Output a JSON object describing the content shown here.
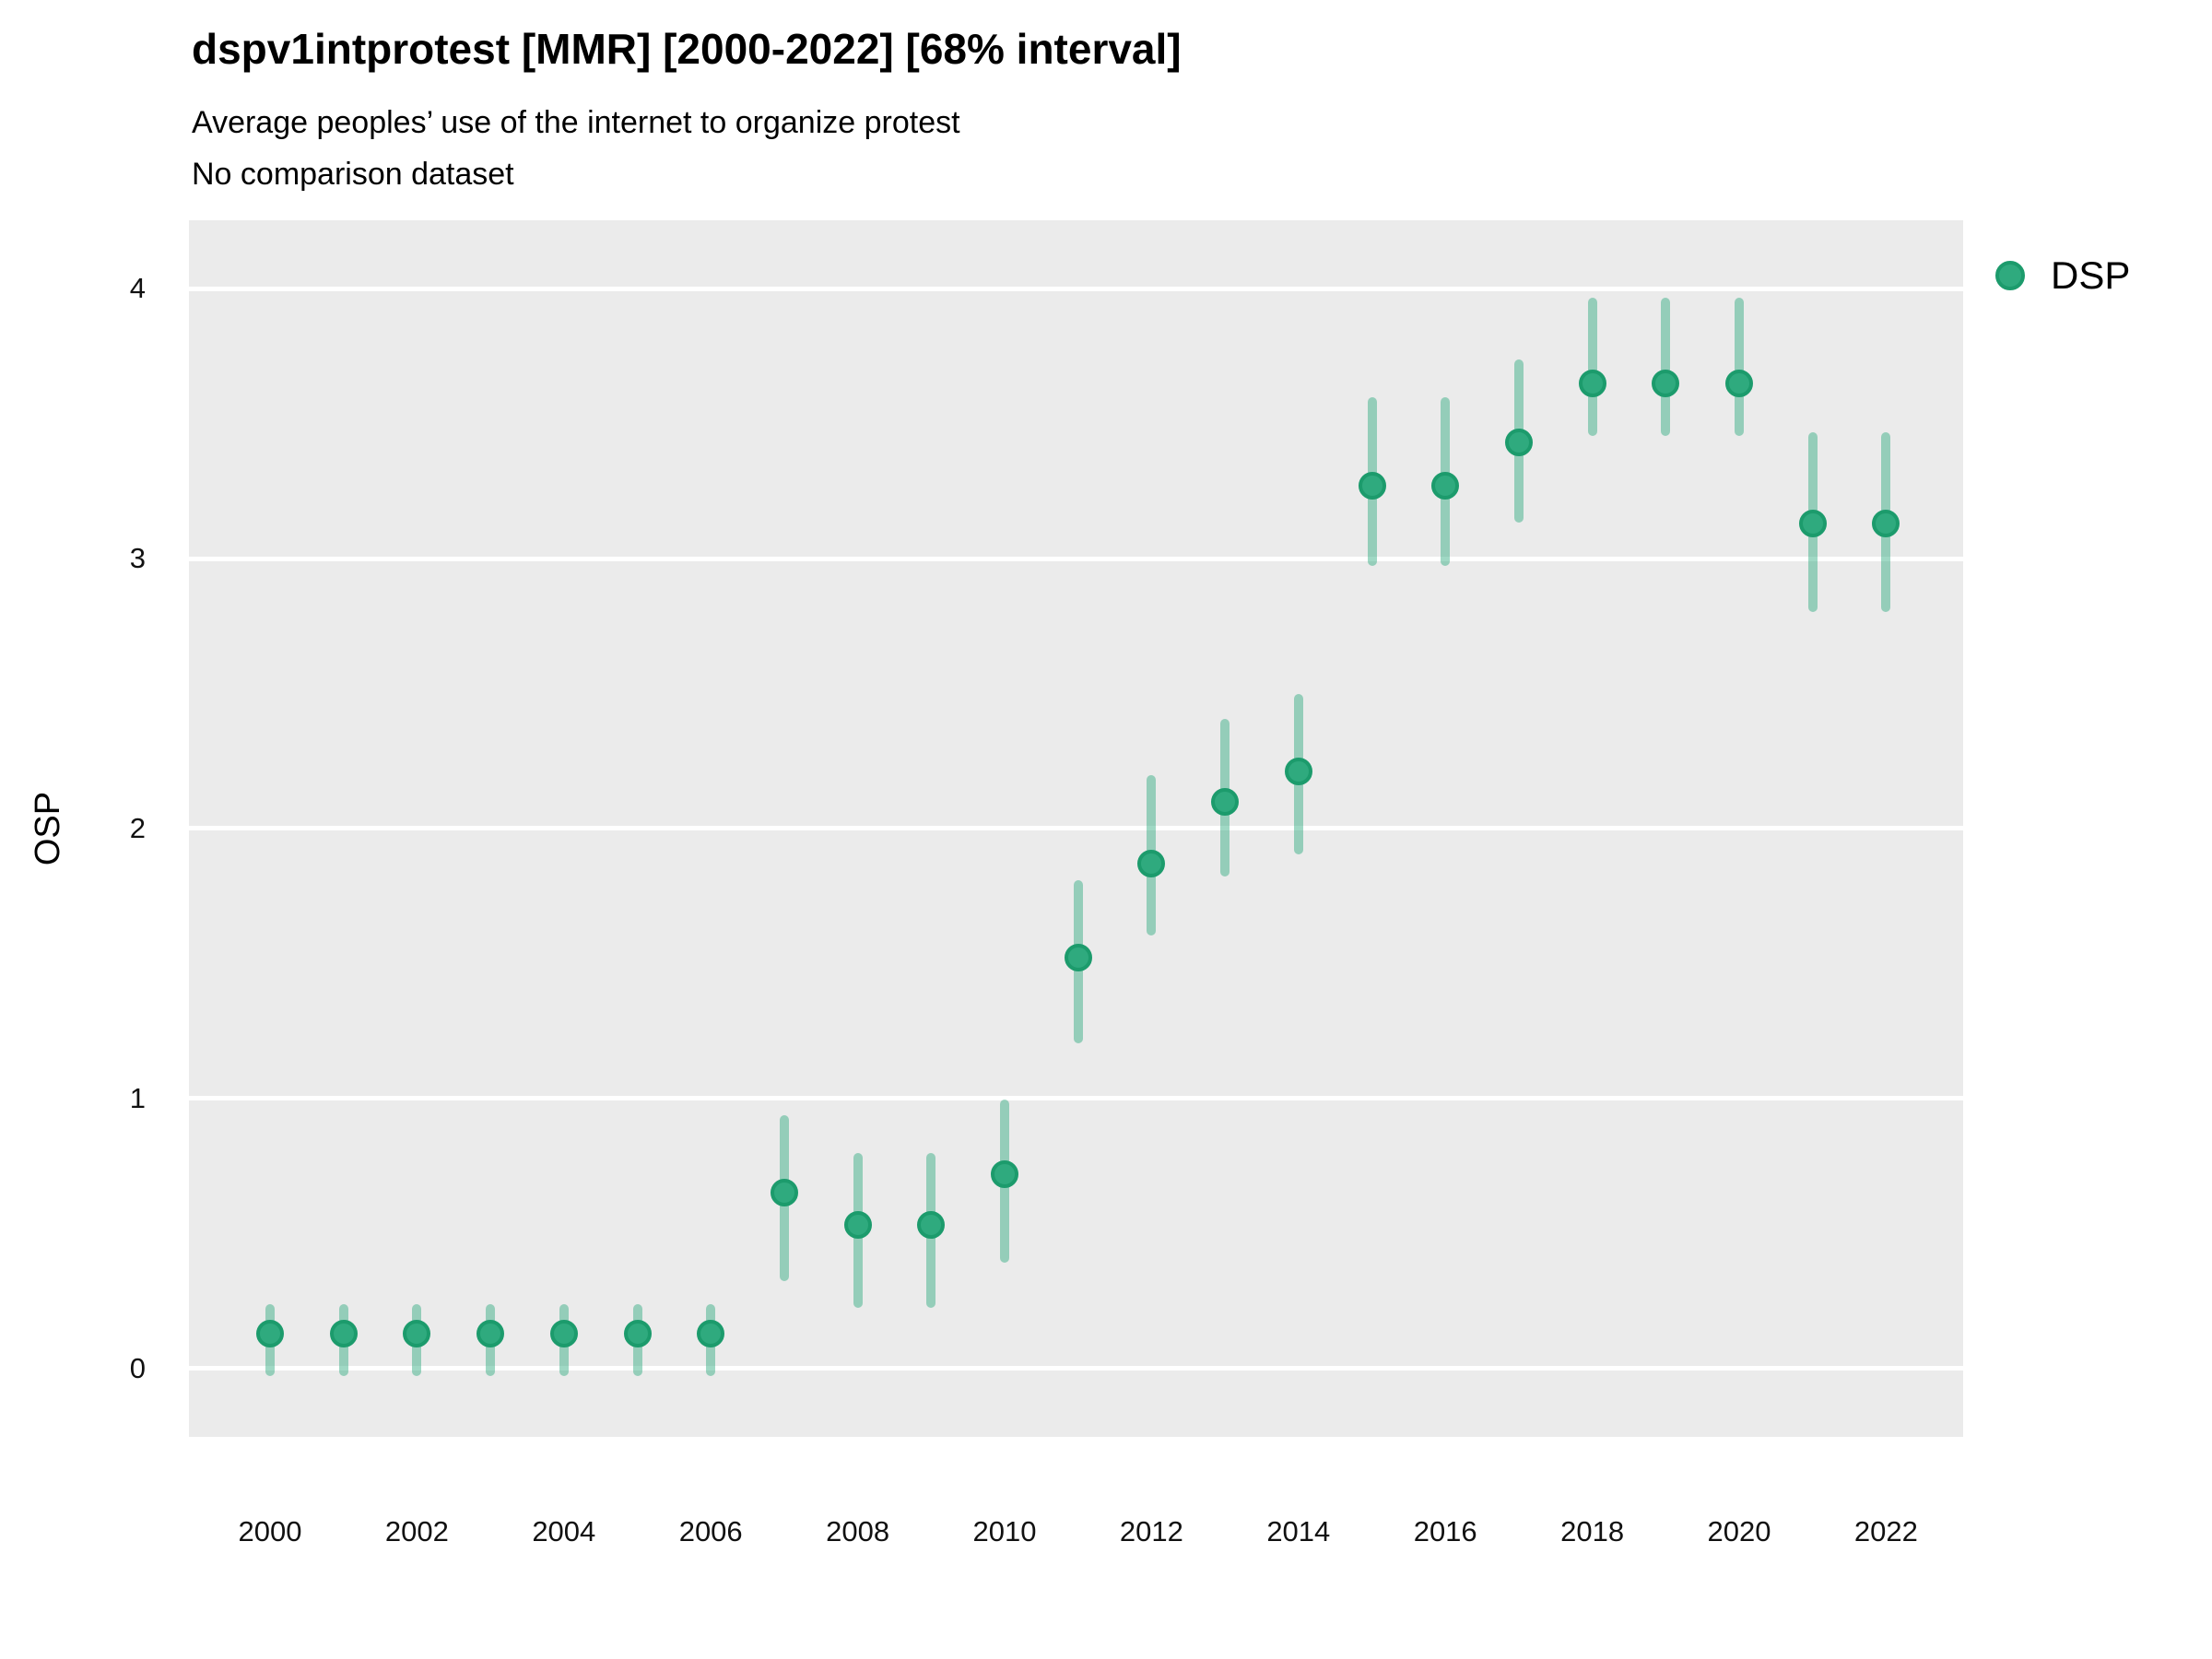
{
  "header": {
    "title": "dspv1intprotest [MMR] [2000-2022] [68% interval]",
    "subtitle": "Average peoples’ use of the internet to organize protest",
    "note": "No comparison dataset"
  },
  "legend": {
    "position": "right",
    "items": [
      {
        "label": "DSP",
        "color": "#2FAA7E"
      }
    ]
  },
  "colors": {
    "panel_background": "#EBEBEB",
    "gridline": "#FFFFFF",
    "point_fill": "#2FAA7E",
    "point_ring": "#1C9B6C",
    "interval_bar": "rgba(42,168,124,0.45)",
    "text": "#000000"
  },
  "chart_data": {
    "type": "pointrange",
    "title": "dspv1intprotest [MMR] [2000-2022] [68% interval]",
    "subtitle": "Average peoples’ use of the internet to organize protest",
    "note": "No comparison dataset",
    "xlabel": "",
    "ylabel": "OSP",
    "interval": "68%",
    "ylim": [
      -0.25,
      4.25
    ],
    "xlim": [
      1998.9,
      2023.1
    ],
    "yticks": [
      0,
      1,
      2,
      3,
      4
    ],
    "xticks": [
      2000,
      2002,
      2004,
      2006,
      2008,
      2010,
      2012,
      2014,
      2016,
      2018,
      2020,
      2022
    ],
    "grid": "horizontal-major-only",
    "legend_position": "right",
    "series": [
      {
        "name": "DSP",
        "color": "#2FAA7E",
        "interval_color": "rgba(42,168,124,0.45)",
        "points": [
          {
            "year": 2000,
            "value": 0.13,
            "lo": -0.01,
            "hi": 0.22
          },
          {
            "year": 2001,
            "value": 0.13,
            "lo": -0.01,
            "hi": 0.22
          },
          {
            "year": 2002,
            "value": 0.13,
            "lo": -0.01,
            "hi": 0.22
          },
          {
            "year": 2003,
            "value": 0.13,
            "lo": -0.01,
            "hi": 0.22
          },
          {
            "year": 2004,
            "value": 0.13,
            "lo": -0.01,
            "hi": 0.22
          },
          {
            "year": 2005,
            "value": 0.13,
            "lo": -0.01,
            "hi": 0.22
          },
          {
            "year": 2006,
            "value": 0.13,
            "lo": -0.01,
            "hi": 0.22
          },
          {
            "year": 2007,
            "value": 0.65,
            "lo": 0.34,
            "hi": 0.92
          },
          {
            "year": 2008,
            "value": 0.53,
            "lo": 0.24,
            "hi": 0.78
          },
          {
            "year": 2009,
            "value": 0.53,
            "lo": 0.24,
            "hi": 0.78
          },
          {
            "year": 2010,
            "value": 0.72,
            "lo": 0.41,
            "hi": 0.98
          },
          {
            "year": 2011,
            "value": 1.52,
            "lo": 1.22,
            "hi": 1.79
          },
          {
            "year": 2012,
            "value": 1.87,
            "lo": 1.62,
            "hi": 2.18
          },
          {
            "year": 2013,
            "value": 2.1,
            "lo": 1.84,
            "hi": 2.39
          },
          {
            "year": 2014,
            "value": 2.21,
            "lo": 1.92,
            "hi": 2.48
          },
          {
            "year": 2015,
            "value": 3.27,
            "lo": 2.99,
            "hi": 3.58
          },
          {
            "year": 2016,
            "value": 3.27,
            "lo": 2.99,
            "hi": 3.58
          },
          {
            "year": 2017,
            "value": 3.43,
            "lo": 3.15,
            "hi": 3.72
          },
          {
            "year": 2018,
            "value": 3.65,
            "lo": 3.47,
            "hi": 3.95
          },
          {
            "year": 2019,
            "value": 3.65,
            "lo": 3.47,
            "hi": 3.95
          },
          {
            "year": 2020,
            "value": 3.65,
            "lo": 3.47,
            "hi": 3.95
          },
          {
            "year": 2021,
            "value": 3.13,
            "lo": 2.82,
            "hi": 3.45
          },
          {
            "year": 2022,
            "value": 3.13,
            "lo": 2.82,
            "hi": 3.45
          }
        ]
      }
    ]
  }
}
